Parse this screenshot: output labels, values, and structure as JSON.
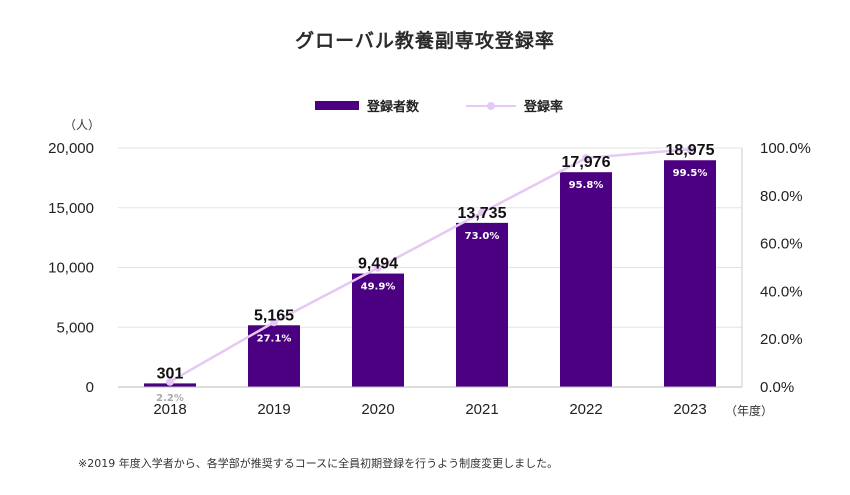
{
  "title": "グローバル教養副専攻登録率",
  "legend": {
    "bar_label": "登録者数",
    "line_label": "登録率"
  },
  "unit_left": "（人）",
  "unit_right": "（年度）",
  "note": "※2019 年度入学者から、各学部が推奨するコースに全員初期登録を行うよう制度変更しました。",
  "colors": {
    "bar": "#4b0082",
    "line": "#e6c8f5",
    "pct_on_bar": "#ffffff",
    "pct_off_bar": "#aaaaaa"
  },
  "chart_data": {
    "type": "bar",
    "title": "グローバル教養副専攻登録率",
    "categories": [
      "2018",
      "2019",
      "2020",
      "2021",
      "2022",
      "2023"
    ],
    "series": [
      {
        "name": "登録者数",
        "type": "bar",
        "axis": "left",
        "values": [
          301,
          5165,
          9494,
          13735,
          17976,
          18975
        ],
        "labels": [
          "301",
          "5,165",
          "9,494",
          "13,735",
          "17,976",
          "18,975"
        ]
      },
      {
        "name": "登録率",
        "type": "line",
        "axis": "right",
        "values": [
          2.2,
          27.1,
          49.9,
          73.0,
          95.8,
          99.5
        ],
        "labels": [
          "2.2%",
          "27.1%",
          "49.9%",
          "73.0%",
          "95.8%",
          "99.5%"
        ]
      }
    ],
    "y_left": {
      "ylim": [
        0,
        20000
      ],
      "ticks": [
        0,
        5000,
        10000,
        15000,
        20000
      ],
      "tick_labels": [
        "0",
        "5,000",
        "10,000",
        "15,000",
        "20,000"
      ]
    },
    "y_right": {
      "ylim": [
        0,
        100
      ],
      "ticks": [
        0,
        20,
        40,
        60,
        80,
        100
      ],
      "tick_labels": [
        "0.0%",
        "20.0%",
        "40.0%",
        "60.0%",
        "80.0%",
        "100.0%"
      ]
    },
    "grid": true,
    "legend_position": "top-center"
  }
}
